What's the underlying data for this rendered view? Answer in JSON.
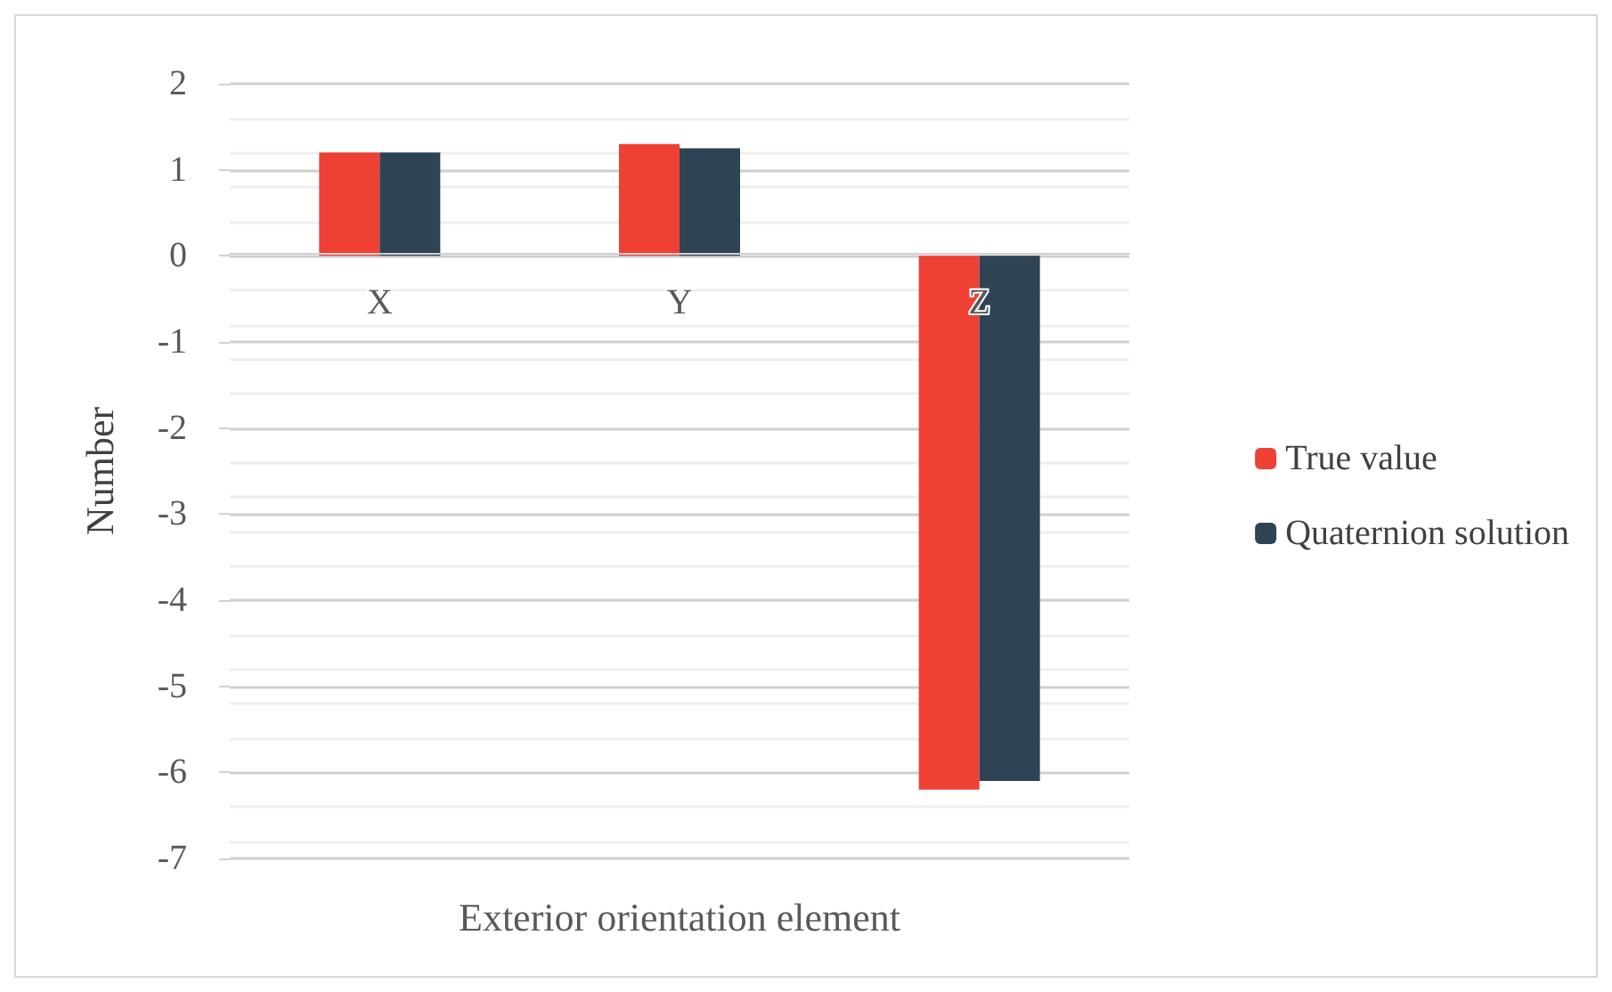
{
  "chart_data": {
    "type": "bar",
    "xlabel": "Exterior orientation element",
    "ylabel": "Number",
    "categories": [
      "X",
      "Y",
      "Z"
    ],
    "series": [
      {
        "name": "True value",
        "color": "#ee4035",
        "values": [
          1.2,
          1.3,
          -6.2
        ]
      },
      {
        "name": "Quaternion solution",
        "color": "#2e4454",
        "values": [
          1.2,
          1.25,
          -6.1
        ]
      }
    ],
    "ylim": [
      -7,
      2
    ],
    "yticks": [
      -7,
      -6,
      -5,
      -4,
      -3,
      -2,
      -1,
      0,
      1,
      2
    ],
    "grid": true,
    "legend": "right"
  }
}
